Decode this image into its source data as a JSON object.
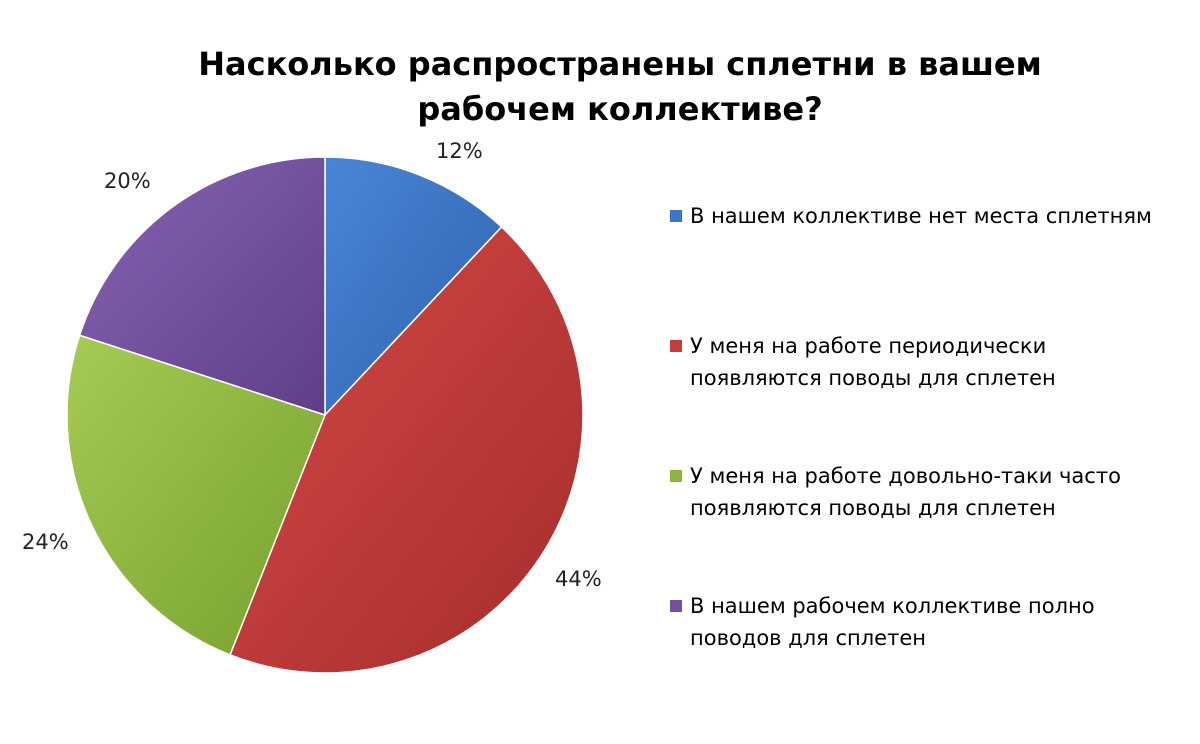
{
  "chart_data": {
    "type": "pie",
    "title": "Насколько распространены сплетни в вашем рабочем коллективе?",
    "categories": [
      "В нашем коллективе нет места сплетням",
      "У меня на работе периодически появляются поводы для сплетен",
      "У меня на работе довольно-таки часто появляются поводы для сплетен",
      "В нашем рабочем коллективе полно поводов для сплетен"
    ],
    "values": [
      12,
      44,
      24,
      20
    ],
    "labels": [
      "12%",
      "44%",
      "24%",
      "20%"
    ],
    "colors": [
      "#3C76C8",
      "#C43C3C",
      "#8DB83F",
      "#744FA0"
    ],
    "legend_position": "right"
  },
  "legend": {
    "items": [
      {
        "line1": "В нашем коллективе нет места сплетням",
        "line2": ""
      },
      {
        "line1": "У меня на работе периодически",
        "line2": "появляются поводы для сплетен"
      },
      {
        "line1": "У меня на работе довольно-таки часто",
        "line2": "появляются поводы для сплетен"
      },
      {
        "line1": "В нашем рабочем коллективе полно",
        "line2": "поводов для сплетен"
      }
    ]
  }
}
